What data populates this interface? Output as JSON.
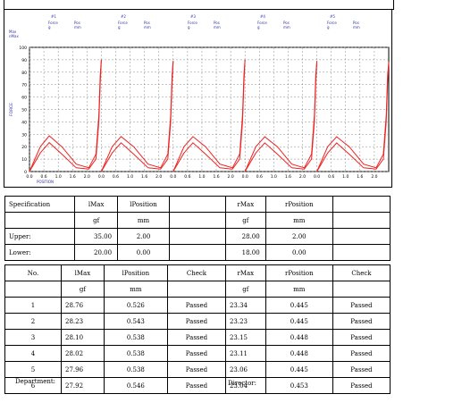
{
  "chart_header": {
    "groups": [
      {
        "num": "#1",
        "force": "Force",
        "force_unit": "g",
        "pos": "Pos",
        "pos_unit": "mm"
      },
      {
        "num": "#2",
        "force": "Force",
        "force_unit": "g",
        "pos": "Pos",
        "pos_unit": "mm"
      },
      {
        "num": "#3",
        "force": "Force",
        "force_unit": "g",
        "pos": "Pos",
        "pos_unit": "mm"
      },
      {
        "num": "#4",
        "force": "Force",
        "force_unit": "g",
        "pos": "Pos",
        "pos_unit": "mm"
      },
      {
        "num": "#5",
        "force": "Force",
        "force_unit": "g",
        "pos": "Pos",
        "pos_unit": "mm"
      }
    ],
    "max_label": "Max",
    "nmax_label": "nMax"
  },
  "chart_data": {
    "type": "line",
    "title": "",
    "xlabel": "POSITION",
    "ylabel": "FORCE",
    "ylim": [
      0,
      100
    ],
    "yticks": [
      0,
      10,
      20,
      30,
      40,
      50,
      60,
      70,
      80,
      90,
      100
    ],
    "xtick_labels": [
      "0.0",
      "0.6",
      "1.0",
      "1.6",
      "2.0",
      "0.0",
      "0.6",
      "1.0",
      "1.6",
      "2.0",
      "0.0",
      "0.6",
      "1.0",
      "1.6",
      "2.0",
      "0.0",
      "0.6",
      "1.0",
      "1.6",
      "2.0",
      "0.0",
      "0.6",
      "1.0",
      "1.6",
      "2.0"
    ],
    "grid": true,
    "color": "#ee2222",
    "panels": [
      {
        "x": [
          0.0,
          0.3,
          0.55,
          0.9,
          1.3,
          1.65,
          1.85,
          1.93,
          1.97,
          2.0
        ],
        "upper": [
          0,
          20,
          28.8,
          20,
          6,
          3,
          14,
          45,
          78,
          90
        ],
        "lower": [
          0,
          15,
          23.3,
          14,
          3,
          2,
          10,
          40,
          72,
          90
        ]
      },
      {
        "x": [
          0.0,
          0.3,
          0.55,
          0.9,
          1.3,
          1.65,
          1.85,
          1.93,
          1.97,
          2.0
        ],
        "upper": [
          0,
          20,
          28.2,
          20,
          6,
          3,
          14,
          45,
          78,
          89
        ],
        "lower": [
          0,
          15,
          23.2,
          14,
          3,
          2,
          10,
          40,
          72,
          89
        ]
      },
      {
        "x": [
          0.0,
          0.3,
          0.55,
          0.9,
          1.3,
          1.65,
          1.85,
          1.93,
          1.97,
          2.0
        ],
        "upper": [
          0,
          20,
          28.1,
          20,
          6,
          3,
          14,
          45,
          78,
          90
        ],
        "lower": [
          0,
          15,
          23.2,
          14,
          3,
          2,
          10,
          40,
          72,
          90
        ]
      },
      {
        "x": [
          0.0,
          0.3,
          0.55,
          0.9,
          1.3,
          1.65,
          1.85,
          1.93,
          1.97,
          2.0
        ],
        "upper": [
          0,
          20,
          28.0,
          20,
          6,
          3,
          14,
          45,
          78,
          89
        ],
        "lower": [
          0,
          15,
          23.1,
          14,
          3,
          2,
          10,
          40,
          72,
          89
        ]
      },
      {
        "x": [
          0.0,
          0.3,
          0.55,
          0.9,
          1.3,
          1.65,
          1.85,
          1.93,
          1.97,
          2.0
        ],
        "upper": [
          0,
          20,
          28.0,
          20,
          6,
          3,
          14,
          45,
          78,
          88
        ],
        "lower": [
          0,
          15,
          23.0,
          14,
          3,
          2,
          10,
          40,
          72,
          88
        ]
      }
    ]
  },
  "spec": {
    "col_spec": "Specification",
    "col_lmax": "lMax",
    "col_lpos": "lPosition",
    "col_rmax": "rMax",
    "col_rpos": "rPosition",
    "unit_gf": "gf",
    "unit_mm": "mm",
    "rows": [
      {
        "label": "Upper:",
        "lmax": "35.00",
        "lpos": "2.00",
        "rmax": "28.00",
        "rpos": "2.00"
      },
      {
        "label": "Lower:",
        "lmax": "20.00",
        "lpos": "0.00",
        "rmax": "18.00",
        "rpos": "0.00"
      }
    ]
  },
  "results": {
    "col_no": "No.",
    "col_lmax": "lMax",
    "col_lpos": "lPosition",
    "col_check": "Check",
    "col_rmax": "rMax",
    "col_rpos": "rPosition",
    "unit_gf": "gf",
    "unit_mm": "mm",
    "rows": [
      {
        "no": "1",
        "lmax": "28.76",
        "lpos": "0.526",
        "lcheck": "Passed",
        "rmax": "23.34",
        "rpos": "0.445",
        "rcheck": "Passed"
      },
      {
        "no": "2",
        "lmax": "28.23",
        "lpos": "0.543",
        "lcheck": "Passed",
        "rmax": "23.23",
        "rpos": "0.445",
        "rcheck": "Passed"
      },
      {
        "no": "3",
        "lmax": "28.10",
        "lpos": "0.538",
        "lcheck": "Passed",
        "rmax": "23.15",
        "rpos": "0.448",
        "rcheck": "Passed"
      },
      {
        "no": "4",
        "lmax": "28.02",
        "lpos": "0.538",
        "lcheck": "Passed",
        "rmax": "23.11",
        "rpos": "0.448",
        "rcheck": "Passed"
      },
      {
        "no": "5",
        "lmax": "27.96",
        "lpos": "0.538",
        "lcheck": "Passed",
        "rmax": "23.06",
        "rpos": "0.445",
        "rcheck": "Passed"
      },
      {
        "no": "6",
        "lmax": "27.92",
        "lpos": "0.546",
        "lcheck": "Passed",
        "rmax": "23.04",
        "rpos": "0.453",
        "rcheck": "Passed"
      }
    ]
  },
  "footer": {
    "department": "Department:",
    "director": "Director:"
  }
}
